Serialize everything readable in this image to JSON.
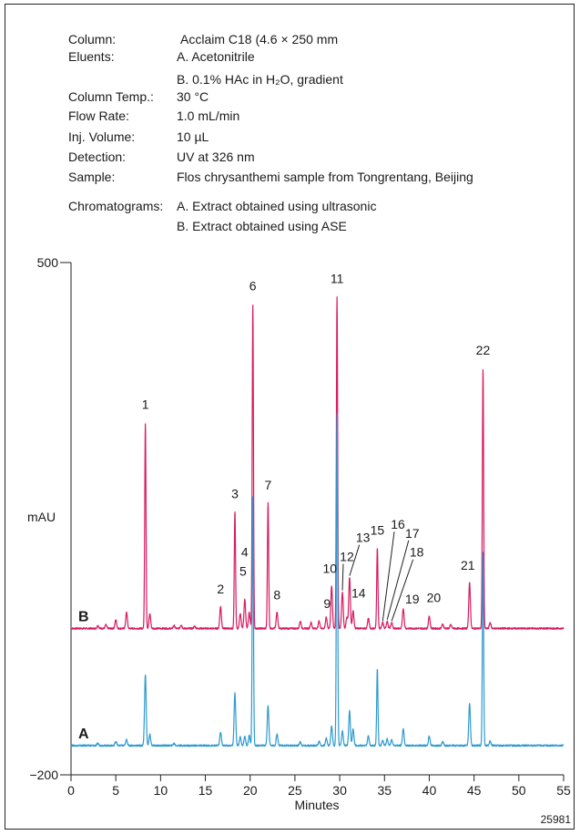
{
  "conditions": [
    {
      "key": "Column:",
      "value": "Acclaim C18 (4.6 × 250 mm"
    },
    {
      "key": "Eluents:",
      "value": "A. Acetonitrile"
    },
    {
      "key": "",
      "value": "B. 0.1% HAc in H₂O, gradient"
    },
    {
      "key": "Column Temp.:",
      "value": "30 °C"
    },
    {
      "key": "Flow Rate:",
      "value": "1.0 mL/min"
    },
    {
      "key": "Inj. Volume:",
      "value": "10 µL"
    },
    {
      "key": "Detection:",
      "value": "UV at 326 nm"
    },
    {
      "key": "Sample:",
      "value": "Flos chrysanthemi sample from Tongrentang, Beijing"
    },
    {
      "key": "Chromatograms:",
      "value": "A. Extract obtained using ultrasonic"
    },
    {
      "key": "",
      "value": "B. Extract obtained using ASE"
    }
  ],
  "figure_id": "25981",
  "colors": {
    "trace_a": "#2e9ad0",
    "trace_b": "#d81b60",
    "axis": "#222222"
  },
  "chart_data": {
    "type": "line",
    "title": "",
    "xlabel": "Minutes",
    "ylabel": "mAU",
    "xlim": [
      0,
      55
    ],
    "ylim": [
      -200,
      500
    ],
    "x_ticks": [
      0,
      5,
      10,
      15,
      20,
      25,
      30,
      35,
      40,
      45,
      50,
      55
    ],
    "y_ticks": [
      -200,
      500
    ],
    "grid": false,
    "legend": "none",
    "trace_labels": [
      "B",
      "A"
    ],
    "series": [
      {
        "name": "B",
        "baseline": 0,
        "peaks": [
          {
            "label": "",
            "x": 3.0,
            "y": 4
          },
          {
            "label": "",
            "x": 3.9,
            "y": 5
          },
          {
            "label": "",
            "x": 5.0,
            "y": 12
          },
          {
            "label": "",
            "x": 6.2,
            "y": 22
          },
          {
            "label": "1",
            "x": 8.3,
            "y": 280
          },
          {
            "label": "",
            "x": 8.8,
            "y": 20
          },
          {
            "label": "",
            "x": 11.5,
            "y": 4
          },
          {
            "label": "",
            "x": 12.3,
            "y": 5
          },
          {
            "label": "",
            "x": 13.8,
            "y": 3
          },
          {
            "label": "2",
            "x": 16.7,
            "y": 30
          },
          {
            "label": "3",
            "x": 18.3,
            "y": 160
          },
          {
            "label": "",
            "x": 18.9,
            "y": 20
          },
          {
            "label": "4",
            "x": 19.4,
            "y": 40
          },
          {
            "label": "5",
            "x": 19.9,
            "y": 22
          },
          {
            "label": "6",
            "x": 20.3,
            "y": 442
          },
          {
            "label": "7",
            "x": 22.0,
            "y": 172
          },
          {
            "label": "8",
            "x": 23.0,
            "y": 22
          },
          {
            "label": "",
            "x": 25.6,
            "y": 10
          },
          {
            "label": "",
            "x": 26.8,
            "y": 8
          },
          {
            "label": "",
            "x": 27.7,
            "y": 10
          },
          {
            "label": "9",
            "x": 28.5,
            "y": 15
          },
          {
            "label": "10",
            "x": 29.1,
            "y": 58
          },
          {
            "label": "11",
            "x": 29.7,
            "y": 453
          },
          {
            "label": "12",
            "x": 30.3,
            "y": 50
          },
          {
            "label": "",
            "x": 30.8,
            "y": 15
          },
          {
            "label": "13",
            "x": 31.1,
            "y": 70
          },
          {
            "label": "14",
            "x": 31.5,
            "y": 24
          },
          {
            "label": "",
            "x": 33.2,
            "y": 14
          },
          {
            "label": "15",
            "x": 34.2,
            "y": 110
          },
          {
            "label": "16",
            "x": 34.8,
            "y": 8
          },
          {
            "label": "17",
            "x": 35.3,
            "y": 10
          },
          {
            "label": "18",
            "x": 35.8,
            "y": 8
          },
          {
            "label": "19",
            "x": 37.1,
            "y": 27
          },
          {
            "label": "20",
            "x": 40.0,
            "y": 17
          },
          {
            "label": "",
            "x": 41.5,
            "y": 6
          },
          {
            "label": "",
            "x": 42.4,
            "y": 5
          },
          {
            "label": "21",
            "x": 44.5,
            "y": 62
          },
          {
            "label": "22",
            "x": 46.0,
            "y": 356
          },
          {
            "label": "",
            "x": 46.8,
            "y": 8
          }
        ]
      },
      {
        "name": "A",
        "baseline": -160,
        "peaks": [
          {
            "label": "",
            "x": 3.0,
            "y": 3
          },
          {
            "label": "",
            "x": 5.0,
            "y": 6
          },
          {
            "label": "",
            "x": 6.2,
            "y": 8
          },
          {
            "label": "1",
            "x": 8.3,
            "y": 97
          },
          {
            "label": "",
            "x": 8.8,
            "y": 15
          },
          {
            "label": "",
            "x": 11.5,
            "y": 3
          },
          {
            "label": "2",
            "x": 16.7,
            "y": 18
          },
          {
            "label": "3",
            "x": 18.3,
            "y": 72
          },
          {
            "label": "",
            "x": 18.9,
            "y": 12
          },
          {
            "label": "4",
            "x": 19.4,
            "y": 13
          },
          {
            "label": "5",
            "x": 19.9,
            "y": 14
          },
          {
            "label": "6",
            "x": 20.3,
            "y": 340
          },
          {
            "label": "7",
            "x": 22.0,
            "y": 55
          },
          {
            "label": "8",
            "x": 23.0,
            "y": 16
          },
          {
            "label": "",
            "x": 25.6,
            "y": 5
          },
          {
            "label": "",
            "x": 27.7,
            "y": 6
          },
          {
            "label": "9",
            "x": 28.5,
            "y": 10
          },
          {
            "label": "10",
            "x": 29.1,
            "y": 27
          },
          {
            "label": "11",
            "x": 29.7,
            "y": 453
          },
          {
            "label": "12",
            "x": 30.3,
            "y": 20
          },
          {
            "label": "13",
            "x": 31.1,
            "y": 47
          },
          {
            "label": "14",
            "x": 31.5,
            "y": 22
          },
          {
            "label": "",
            "x": 33.2,
            "y": 13
          },
          {
            "label": "15",
            "x": 34.2,
            "y": 105
          },
          {
            "label": "16",
            "x": 34.8,
            "y": 7
          },
          {
            "label": "17",
            "x": 35.3,
            "y": 9
          },
          {
            "label": "18",
            "x": 35.8,
            "y": 8
          },
          {
            "label": "19",
            "x": 37.1,
            "y": 23
          },
          {
            "label": "20",
            "x": 40.0,
            "y": 13
          },
          {
            "label": "",
            "x": 41.5,
            "y": 5
          },
          {
            "label": "21",
            "x": 44.5,
            "y": 58
          },
          {
            "label": "22",
            "x": 46.0,
            "y": 266
          },
          {
            "label": "",
            "x": 46.8,
            "y": 6
          }
        ]
      }
    ],
    "peak_labels": [
      {
        "text": "1",
        "x": 8.3,
        "y": 300,
        "leader_to": null
      },
      {
        "text": "2",
        "x": 16.7,
        "y": 48,
        "leader_to": null
      },
      {
        "text": "3",
        "x": 18.3,
        "y": 178,
        "leader_to": null
      },
      {
        "text": "4",
        "x": 19.4,
        "y": 98,
        "leader_to": null
      },
      {
        "text": "5",
        "x": 19.2,
        "y": 72,
        "leader_to": null
      },
      {
        "text": "6",
        "x": 20.3,
        "y": 462,
        "leader_to": null
      },
      {
        "text": "7",
        "x": 22.0,
        "y": 190,
        "leader_to": null
      },
      {
        "text": "8",
        "x": 23.0,
        "y": 40,
        "leader_to": null
      },
      {
        "text": "9",
        "x": 28.6,
        "y": 28,
        "leader_to": null
      },
      {
        "text": "10",
        "x": 28.9,
        "y": 76,
        "leader_to": null
      },
      {
        "text": "11",
        "x": 29.7,
        "y": 472,
        "leader_to": null
      },
      {
        "text": "12",
        "x": 30.8,
        "y": 92,
        "leader_to": [
          30.3,
          52
        ]
      },
      {
        "text": "13",
        "x": 32.6,
        "y": 118,
        "leader_to": [
          31.1,
          72
        ]
      },
      {
        "text": "14",
        "x": 32.1,
        "y": 42,
        "leader_to": null
      },
      {
        "text": "15",
        "x": 34.2,
        "y": 128,
        "leader_to": null
      },
      {
        "text": "16",
        "x": 36.5,
        "y": 136,
        "leader_to": [
          34.8,
          10
        ]
      },
      {
        "text": "17",
        "x": 38.1,
        "y": 124,
        "leader_to": [
          35.3,
          12
        ]
      },
      {
        "text": "18",
        "x": 38.6,
        "y": 98,
        "leader_to": [
          35.8,
          10
        ]
      },
      {
        "text": "19",
        "x": 38.1,
        "y": 34,
        "leader_to": null
      },
      {
        "text": "20",
        "x": 40.5,
        "y": 36,
        "leader_to": null
      },
      {
        "text": "21",
        "x": 44.3,
        "y": 80,
        "leader_to": null
      },
      {
        "text": "22",
        "x": 46.0,
        "y": 374,
        "leader_to": null
      }
    ]
  }
}
